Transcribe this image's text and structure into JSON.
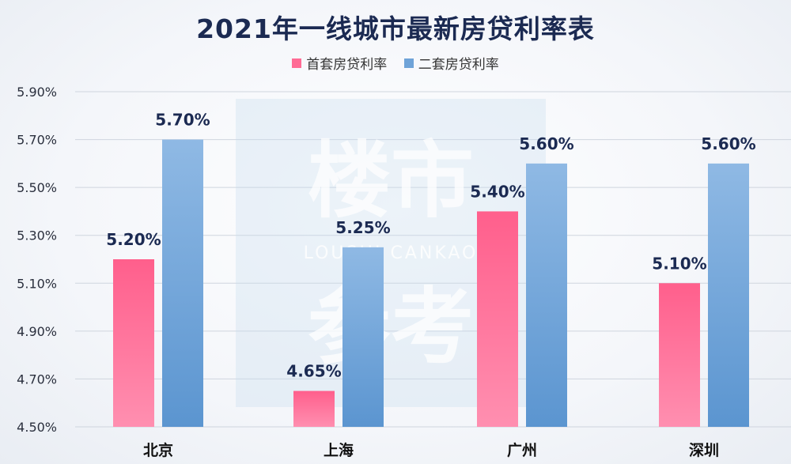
{
  "colors": {
    "series1": "#ff6b95",
    "series2": "#6fa3d8",
    "title": "#1b2a52",
    "axis_text": "#2a2f3d",
    "data_label": "#1b2a52",
    "watermark": "#6f9fd2"
  },
  "watermark": {
    "line1": "楼市",
    "line2": "LOUSHI CANKAO",
    "line3": "参考"
  },
  "chart_data": {
    "type": "bar",
    "title": "2021年一线城市最新房贷利率表",
    "categories": [
      "北京",
      "上海",
      "广州",
      "深圳"
    ],
    "series": [
      {
        "name": "首套房贷利率",
        "values": [
          5.2,
          4.65,
          5.4,
          5.1
        ],
        "labels": [
          "5.20%",
          "4.65%",
          "5.40%",
          "5.10%"
        ]
      },
      {
        "name": "二套房贷利率",
        "values": [
          5.7,
          5.25,
          5.6,
          5.6
        ],
        "labels": [
          "5.70%",
          "5.25%",
          "5.60%",
          "5.60%"
        ]
      }
    ],
    "yticks": [
      "4.50%",
      "4.70%",
      "4.90%",
      "5.10%",
      "5.30%",
      "5.50%",
      "5.70%",
      "5.90%"
    ],
    "ytick_values": [
      4.5,
      4.7,
      4.9,
      5.1,
      5.3,
      5.5,
      5.7,
      5.9
    ],
    "ylim": [
      4.5,
      5.9
    ],
    "grid": true,
    "legend_position": "top-center"
  }
}
